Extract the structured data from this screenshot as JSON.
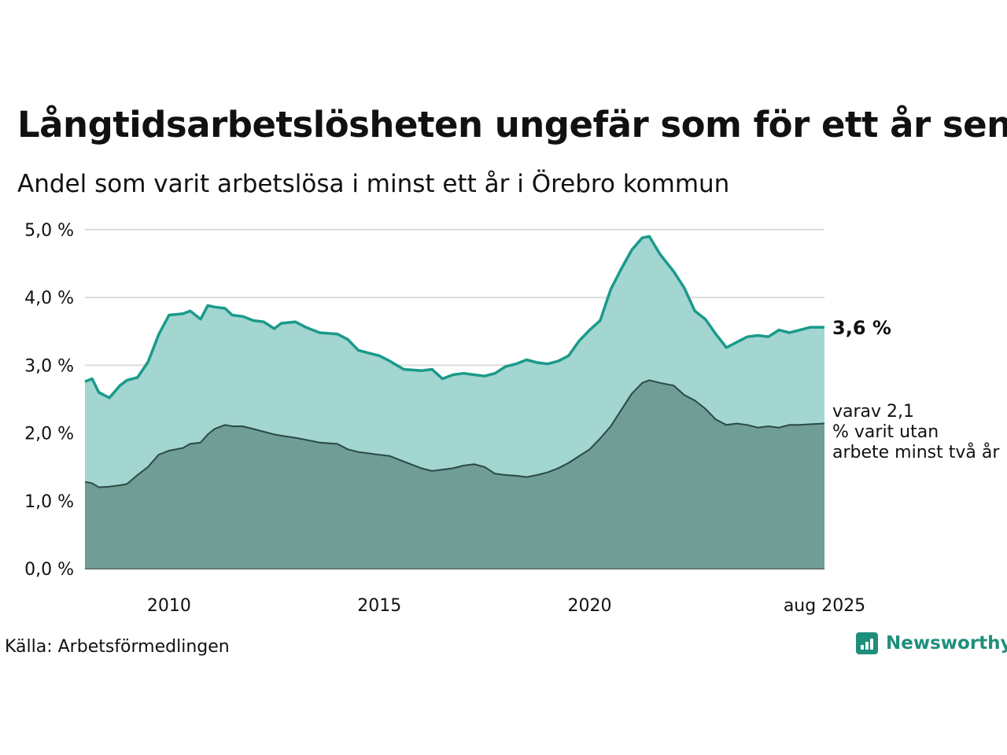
{
  "title": "Långtidsarbetslösheten ungefär som för ett år sen",
  "subtitle": "Andel som varit arbetslösa i minst ett år i Örebro kommun",
  "source": "Källa: Arbetsförmedlingen",
  "logo": {
    "text": "Newsworthy",
    "icon": "newsworthy-logo-icon"
  },
  "colors": {
    "total_line": "#1a9a8a",
    "total_fill": "#a3d5d1",
    "sub_line": "#2a4a44",
    "sub_fill": "#709d96",
    "grid": "#dcdcdc",
    "logo": "#1e8f7c"
  },
  "chart_data": {
    "type": "area",
    "title": "Långtidsarbetslösheten ungefär som för ett år sen",
    "subtitle": "Andel som varit arbetslösa i minst ett år i Örebro kommun",
    "xlabel": "",
    "ylabel": "",
    "ylim": [
      0,
      5
    ],
    "yticks": [
      0,
      1,
      2,
      3,
      4,
      5
    ],
    "ytick_labels": [
      "0,0 %",
      "1,0 %",
      "2,0 %",
      "3,0 %",
      "4,0 %",
      "5,0 %"
    ],
    "xlim": [
      2008.0,
      2025.583
    ],
    "xticks": [
      2010,
      2015,
      2020,
      2025.583
    ],
    "xtick_labels": [
      "2010",
      "2015",
      "2020",
      "aug 2025"
    ],
    "grid": true,
    "series": [
      {
        "key": "total",
        "label": "3,6 %",
        "x": [
          2008.0,
          2008.17,
          2008.33,
          2008.58,
          2008.83,
          2009.0,
          2009.25,
          2009.5,
          2009.75,
          2010.0,
          2010.33,
          2010.5,
          2010.75,
          2010.92,
          2011.08,
          2011.33,
          2011.5,
          2011.75,
          2012.0,
          2012.25,
          2012.5,
          2012.67,
          2013.0,
          2013.25,
          2013.58,
          2014.0,
          2014.25,
          2014.5,
          2014.75,
          2015.0,
          2015.25,
          2015.58,
          2016.0,
          2016.25,
          2016.5,
          2016.75,
          2017.0,
          2017.25,
          2017.5,
          2017.75,
          2018.0,
          2018.25,
          2018.5,
          2018.75,
          2019.0,
          2019.25,
          2019.5,
          2019.75,
          2020.0,
          2020.25,
          2020.5,
          2020.75,
          2021.0,
          2021.25,
          2021.42,
          2021.67,
          2022.0,
          2022.25,
          2022.5,
          2022.75,
          2023.0,
          2023.25,
          2023.5,
          2023.75,
          2024.0,
          2024.25,
          2024.5,
          2024.75,
          2025.0,
          2025.25,
          2025.583
        ],
        "values": [
          2.76,
          2.8,
          2.6,
          2.52,
          2.7,
          2.78,
          2.82,
          3.05,
          3.45,
          3.74,
          3.76,
          3.8,
          3.68,
          3.88,
          3.86,
          3.84,
          3.74,
          3.72,
          3.66,
          3.64,
          3.54,
          3.62,
          3.64,
          3.56,
          3.48,
          3.46,
          3.38,
          3.22,
          3.18,
          3.14,
          3.06,
          2.94,
          2.92,
          2.94,
          2.8,
          2.86,
          2.88,
          2.86,
          2.84,
          2.88,
          2.98,
          3.02,
          3.08,
          3.04,
          3.02,
          3.06,
          3.14,
          3.36,
          3.52,
          3.66,
          4.12,
          4.42,
          4.7,
          4.88,
          4.9,
          4.64,
          4.38,
          4.14,
          3.8,
          3.68,
          3.46,
          3.26,
          3.34,
          3.42,
          3.44,
          3.42,
          3.52,
          3.48,
          3.52,
          3.56,
          3.56
        ]
      },
      {
        "key": "sub",
        "label": "varav 2,1 % varit utan arbete minst två år",
        "x": [
          2008.0,
          2008.17,
          2008.33,
          2008.58,
          2008.83,
          2009.0,
          2009.25,
          2009.5,
          2009.75,
          2010.0,
          2010.33,
          2010.5,
          2010.75,
          2010.92,
          2011.08,
          2011.33,
          2011.5,
          2011.75,
          2012.0,
          2012.25,
          2012.5,
          2012.67,
          2013.0,
          2013.25,
          2013.58,
          2014.0,
          2014.25,
          2014.5,
          2014.75,
          2015.0,
          2015.25,
          2015.58,
          2016.0,
          2016.25,
          2016.5,
          2016.75,
          2017.0,
          2017.25,
          2017.5,
          2017.75,
          2018.0,
          2018.25,
          2018.5,
          2018.75,
          2019.0,
          2019.25,
          2019.5,
          2019.75,
          2020.0,
          2020.25,
          2020.5,
          2020.75,
          2021.0,
          2021.25,
          2021.42,
          2021.67,
          2022.0,
          2022.25,
          2022.5,
          2022.75,
          2023.0,
          2023.25,
          2023.5,
          2023.75,
          2024.0,
          2024.25,
          2024.5,
          2024.75,
          2025.0,
          2025.25,
          2025.583
        ],
        "values": [
          1.28,
          1.26,
          1.2,
          1.21,
          1.23,
          1.25,
          1.38,
          1.5,
          1.68,
          1.74,
          1.78,
          1.84,
          1.86,
          1.98,
          2.06,
          2.12,
          2.1,
          2.1,
          2.06,
          2.02,
          1.98,
          1.96,
          1.93,
          1.9,
          1.86,
          1.84,
          1.76,
          1.72,
          1.7,
          1.68,
          1.66,
          1.58,
          1.48,
          1.44,
          1.46,
          1.48,
          1.52,
          1.54,
          1.5,
          1.4,
          1.38,
          1.37,
          1.35,
          1.38,
          1.42,
          1.48,
          1.56,
          1.66,
          1.76,
          1.92,
          2.1,
          2.34,
          2.58,
          2.74,
          2.78,
          2.74,
          2.7,
          2.56,
          2.48,
          2.36,
          2.2,
          2.12,
          2.14,
          2.12,
          2.08,
          2.1,
          2.08,
          2.12,
          2.12,
          2.13,
          2.14
        ]
      }
    ]
  }
}
